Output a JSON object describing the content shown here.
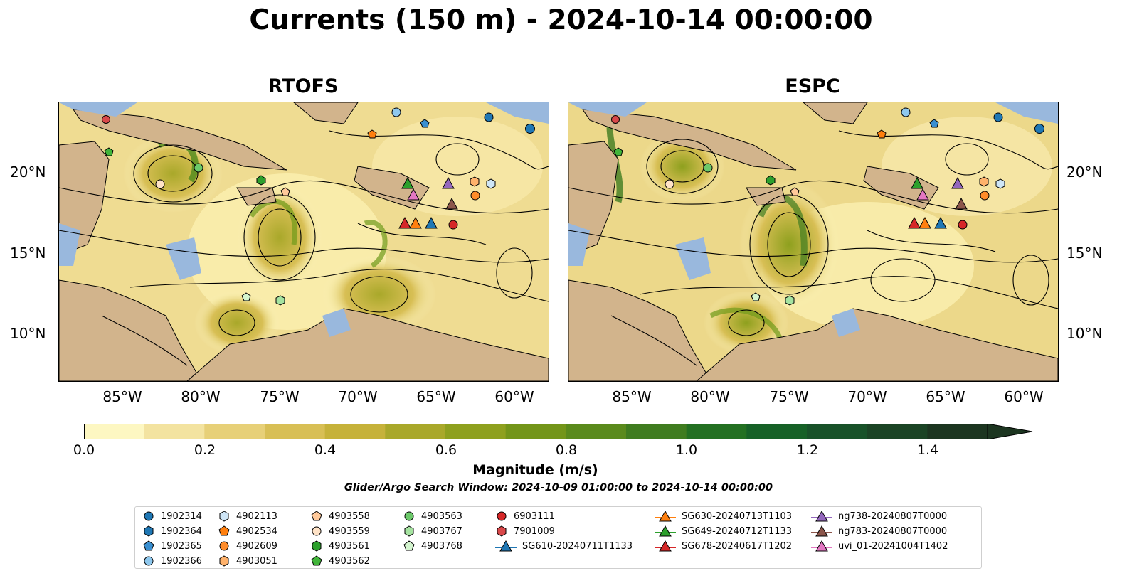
{
  "title": "Currents (150 m) - 2024-10-14 00:00:00",
  "panels": [
    {
      "title": "RTOFS"
    },
    {
      "title": "ESPC"
    }
  ],
  "axes": {
    "lat_labels": [
      "20°N",
      "15°N",
      "10°N"
    ],
    "lon_labels": [
      "85°W",
      "80°W",
      "75°W",
      "70°W",
      "65°W",
      "60°W"
    ]
  },
  "colorbar": {
    "label": "Magnitude (m/s)",
    "ticks": [
      "0.0",
      "0.2",
      "0.4",
      "0.6",
      "0.8",
      "1.0",
      "1.2",
      "1.4"
    ],
    "range": [
      0,
      1.5
    ],
    "colors": [
      "#fdf7c2",
      "#f3e3a0",
      "#e7d078",
      "#d8bf55",
      "#c6b23a",
      "#a9a82a",
      "#8ea01e",
      "#739519",
      "#5a8a1c",
      "#3f7c1f",
      "#237022",
      "#166127",
      "#185229",
      "#1b4425",
      "#1c3520"
    ]
  },
  "search_window": "Glider/Argo Search Window: 2024-10-09 01:00:00 to 2024-10-14 00:00:00",
  "legend": [
    {
      "label": "1902314",
      "marker": "circle",
      "color": "#1f77b4"
    },
    {
      "label": "1902364",
      "marker": "hexagon",
      "color": "#1f77b4"
    },
    {
      "label": "1902365",
      "marker": "pentagon",
      "color": "#3a8fd0"
    },
    {
      "label": "1902366",
      "marker": "circle",
      "color": "#8ec8ee"
    },
    {
      "label": "4902113",
      "marker": "hexagon",
      "color": "#cfe6f7"
    },
    {
      "label": "4902534",
      "marker": "pentagon",
      "color": "#ff7f0e"
    },
    {
      "label": "4902609",
      "marker": "circle",
      "color": "#ff8c2a"
    },
    {
      "label": "4903051",
      "marker": "hexagon",
      "color": "#ffb26b"
    },
    {
      "label": "4903558",
      "marker": "pentagon",
      "color": "#ffc99a"
    },
    {
      "label": "4903559",
      "marker": "circle",
      "color": "#ffe3c7"
    },
    {
      "label": "4903561",
      "marker": "hexagon",
      "color": "#2ca02c"
    },
    {
      "label": "4903562",
      "marker": "pentagon",
      "color": "#41b53a"
    },
    {
      "label": "4903563",
      "marker": "circle",
      "color": "#6cc96a"
    },
    {
      "label": "4903767",
      "marker": "hexagon",
      "color": "#a5e3a0"
    },
    {
      "label": "4903768",
      "marker": "pentagon",
      "color": "#d4f5cf"
    },
    {
      "label": "6903111",
      "marker": "circle",
      "color": "#d62728"
    },
    {
      "label": "7901009",
      "marker": "hexagon",
      "color": "#d9484a"
    },
    {
      "label": "SG610-20240711T1133",
      "marker": "triangle",
      "color": "#1f77b4"
    },
    {
      "label": "SG630-20240713T1103",
      "marker": "triangle",
      "color": "#ff7f0e"
    },
    {
      "label": "SG649-20240712T1133",
      "marker": "triangle",
      "color": "#2ca02c"
    },
    {
      "label": "SG678-20240617T1202",
      "marker": "triangle",
      "color": "#d62728"
    },
    {
      "label": "ng738-20240807T0000",
      "marker": "triangle",
      "color": "#9467bd"
    },
    {
      "label": "ng783-20240807T0000",
      "marker": "triangle",
      "color": "#8c564b"
    },
    {
      "label": "uvi_01-20241004T1402",
      "marker": "triangle",
      "color": "#e377c2"
    }
  ]
}
